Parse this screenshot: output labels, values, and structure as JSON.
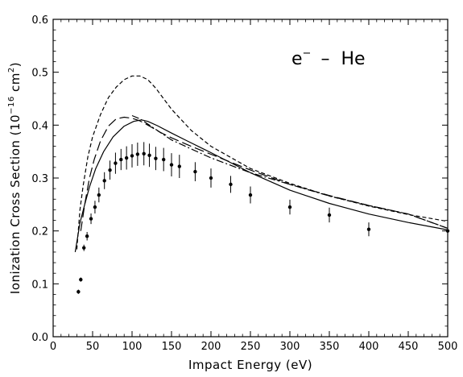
{
  "chart_data": {
    "type": "line",
    "title": "",
    "xlabel": "Impact Energy (eV)",
    "ylabel": "Ionization Cross Section (10^-16 cm^2)",
    "ylabel_parts": {
      "base": "Ionization Cross Section (10",
      "exp": "−16",
      "mid": " cm",
      "exp2": "2",
      "end": ")"
    },
    "xlim": [
      0,
      500
    ],
    "ylim": [
      0.0,
      0.6
    ],
    "xticks": [
      0,
      50,
      100,
      150,
      200,
      250,
      300,
      350,
      400,
      450,
      500
    ],
    "yticks": [
      "0.0",
      "0.1",
      "0.2",
      "0.3",
      "0.4",
      "0.5",
      "0.6"
    ],
    "grid": false,
    "legend": "none",
    "annotation": {
      "particle": "e",
      "sup": "−",
      "dash": "–",
      "target": "He"
    },
    "series": [
      {
        "style": "solid",
        "x": [
          28,
          34,
          40,
          46,
          54,
          64,
          76,
          90,
          102,
          112,
          120,
          132,
          150,
          170,
          200,
          250,
          300,
          350,
          400,
          450,
          500
        ],
        "y": [
          0.16,
          0.215,
          0.25,
          0.283,
          0.318,
          0.35,
          0.378,
          0.398,
          0.407,
          0.41,
          0.407,
          0.399,
          0.385,
          0.37,
          0.348,
          0.31,
          0.277,
          0.252,
          0.232,
          0.216,
          0.202
        ]
      },
      {
        "style": "short-dashed",
        "x": [
          30,
          34,
          38,
          44,
          50,
          60,
          70,
          80,
          90,
          100,
          110,
          120,
          130,
          150,
          175,
          200,
          250,
          300,
          350,
          400,
          450,
          500
        ],
        "y": [
          0.165,
          0.24,
          0.285,
          0.34,
          0.378,
          0.42,
          0.452,
          0.472,
          0.486,
          0.493,
          0.493,
          0.486,
          0.47,
          0.43,
          0.39,
          0.36,
          0.318,
          0.29,
          0.266,
          0.247,
          0.231,
          0.218
        ]
      },
      {
        "style": "long-dashed",
        "x": [
          35,
          40,
          46,
          52,
          60,
          70,
          80,
          90,
          100,
          110,
          120,
          135,
          150,
          175,
          200,
          250,
          300,
          350,
          400,
          450,
          500
        ],
        "y": [
          0.2,
          0.25,
          0.3,
          0.335,
          0.37,
          0.398,
          0.412,
          0.415,
          0.413,
          0.408,
          0.4,
          0.387,
          0.376,
          0.36,
          0.345,
          0.315,
          0.288,
          0.267,
          0.248,
          0.232,
          0.205
        ]
      },
      {
        "style": "dash-dot",
        "x": [
          100,
          110,
          120,
          135,
          150,
          175,
          200,
          250,
          300,
          350,
          400,
          450,
          500
        ],
        "y": [
          0.418,
          0.412,
          0.402,
          0.387,
          0.372,
          0.355,
          0.338,
          0.31,
          0.288,
          0.266,
          0.248,
          0.232,
          0.205
        ]
      }
    ],
    "points": {
      "x": [
        32,
        35,
        39,
        43,
        48,
        53,
        58,
        65,
        72,
        79,
        86,
        93,
        100,
        107,
        115,
        122,
        130,
        140,
        150,
        160,
        180,
        200,
        225,
        250,
        300,
        350,
        400,
        500
      ],
      "y": [
        0.085,
        0.108,
        0.168,
        0.19,
        0.223,
        0.245,
        0.268,
        0.295,
        0.315,
        0.328,
        0.335,
        0.338,
        0.342,
        0.345,
        0.346,
        0.343,
        0.337,
        0.335,
        0.325,
        0.322,
        0.312,
        0.3,
        0.288,
        0.268,
        0.245,
        0.23,
        0.203,
        0.2
      ],
      "err": [
        0.004,
        0.004,
        0.006,
        0.008,
        0.01,
        0.012,
        0.014,
        0.016,
        0.018,
        0.02,
        0.02,
        0.022,
        0.022,
        0.022,
        0.022,
        0.022,
        0.022,
        0.022,
        0.022,
        0.022,
        0.018,
        0.018,
        0.016,
        0.016,
        0.014,
        0.014,
        0.013,
        0.01
      ]
    }
  }
}
